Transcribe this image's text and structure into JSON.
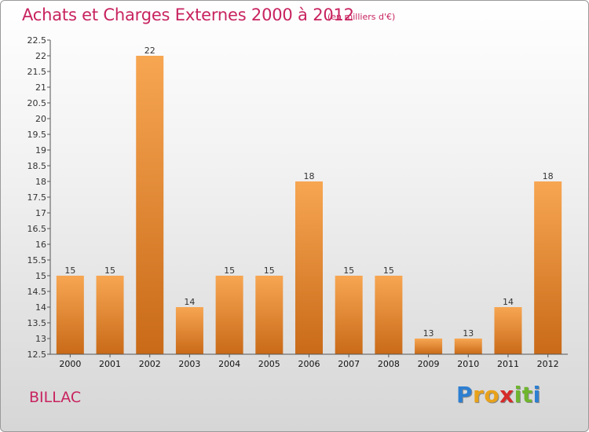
{
  "header": {
    "title": "Achats et Charges Externes 2000 à 2012",
    "subtitle": "(en milliers d'€)"
  },
  "footer": {
    "commune": "BILLAC",
    "logo": {
      "letters": [
        "P",
        "r",
        "o",
        "x",
        "i",
        "t",
        "i"
      ],
      "colors": [
        "#2d7fd1",
        "#e8a21a",
        "#e8a21a",
        "#d62a2a",
        "#6fb52e",
        "#6fb52e",
        "#2d7fd1"
      ]
    }
  },
  "chart_data": {
    "type": "bar",
    "title": "Achats et Charges Externes 2000 à 2012",
    "subtitle": "(en milliers d'€)",
    "categories": [
      "2000",
      "2001",
      "2002",
      "2003",
      "2004",
      "2005",
      "2006",
      "2007",
      "2008",
      "2009",
      "2010",
      "2011",
      "2012"
    ],
    "values": [
      15,
      15,
      22,
      14,
      15,
      15,
      18,
      15,
      15,
      13,
      13,
      14,
      18
    ],
    "labels": [
      "15",
      "15",
      "22",
      "14",
      "15",
      "15",
      "18",
      "15",
      "15",
      "13",
      "13",
      "14",
      "18"
    ],
    "yticks": [
      "12.5",
      "13",
      "13.5",
      "14",
      "14.5",
      "15",
      "15.5",
      "16",
      "16.5",
      "17",
      "17.5",
      "18",
      "18.5",
      "19",
      "19.5",
      "20",
      "20.5",
      "21",
      "21.5",
      "22",
      "22.5"
    ],
    "ylim": [
      12.5,
      22.5
    ],
    "grid": false,
    "bar_color": "#e8822a"
  }
}
